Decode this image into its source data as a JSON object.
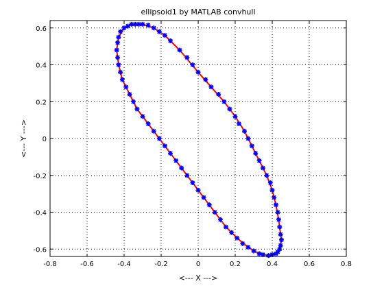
{
  "chart_data": {
    "type": "scatter",
    "title": "ellipsoid1 by MATLAB convhull",
    "xlabel": "<--- X --->",
    "ylabel": "<--- Y --->",
    "xlim": [
      -0.8,
      0.8
    ],
    "ylim": [
      -0.64,
      0.64
    ],
    "xticks": [
      -0.8,
      -0.6,
      -0.4,
      -0.2,
      0,
      0.2,
      0.4,
      0.6,
      0.8
    ],
    "xtick_labels": [
      "-0.8",
      "-0.6",
      "-0.4",
      "-0.2",
      "0",
      "0.2",
      "0.4",
      "0.6",
      "0.8"
    ],
    "yticks": [
      -0.6,
      -0.4,
      -0.2,
      0,
      0.2,
      0.4,
      0.6
    ],
    "ytick_labels": [
      "-0.6",
      "-0.4",
      "-0.2",
      "0",
      "0.2",
      "0.4",
      "0.6"
    ],
    "grid": true,
    "grid_style": "dotted",
    "series": [
      {
        "kind": "points",
        "color": "#0000ff",
        "marker": "star",
        "x": [
          -0.3,
          -0.27,
          -0.24,
          -0.21,
          -0.18,
          -0.15,
          -0.1,
          -0.06,
          -0.03,
          0.0,
          0.04,
          0.07,
          0.11,
          0.14,
          0.17,
          0.2,
          0.22,
          0.25,
          0.27,
          0.29,
          0.31,
          0.33,
          0.35,
          0.37,
          0.39,
          0.4,
          0.41,
          0.42,
          0.43,
          0.435,
          0.44,
          0.445,
          0.45,
          0.445,
          0.44,
          0.43,
          0.42,
          0.4,
          0.38,
          0.35,
          0.33,
          0.3,
          0.27,
          0.24,
          0.21,
          0.18,
          0.15,
          0.12,
          0.09,
          0.06,
          0.03,
          0.0,
          -0.03,
          -0.06,
          -0.09,
          -0.12,
          -0.15,
          -0.18,
          -0.21,
          -0.24,
          -0.27,
          -0.3,
          -0.33,
          -0.35,
          -0.37,
          -0.39,
          -0.41,
          -0.42,
          -0.43,
          -0.435,
          -0.44,
          -0.435,
          -0.43,
          -0.42,
          -0.4,
          -0.38,
          -0.36,
          -0.34,
          -0.32
        ],
        "y": [
          0.62,
          0.615,
          0.6,
          0.58,
          0.56,
          0.53,
          0.48,
          0.44,
          0.4,
          0.36,
          0.32,
          0.28,
          0.24,
          0.2,
          0.16,
          0.12,
          0.08,
          0.04,
          0.0,
          -0.04,
          -0.08,
          -0.12,
          -0.16,
          -0.2,
          -0.24,
          -0.28,
          -0.32,
          -0.36,
          -0.4,
          -0.44,
          -0.48,
          -0.52,
          -0.55,
          -0.58,
          -0.6,
          -0.615,
          -0.625,
          -0.63,
          -0.635,
          -0.63,
          -0.625,
          -0.61,
          -0.59,
          -0.57,
          -0.54,
          -0.51,
          -0.48,
          -0.44,
          -0.4,
          -0.36,
          -0.32,
          -0.28,
          -0.24,
          -0.2,
          -0.16,
          -0.12,
          -0.08,
          -0.04,
          0.0,
          0.04,
          0.08,
          0.12,
          0.16,
          0.2,
          0.24,
          0.28,
          0.32,
          0.36,
          0.4,
          0.44,
          0.48,
          0.52,
          0.55,
          0.58,
          0.6,
          0.61,
          0.62,
          0.62,
          0.62
        ]
      },
      {
        "kind": "line",
        "color": "#ff0000",
        "closed": true,
        "x": [
          -0.3,
          -0.24,
          -0.18,
          -0.1,
          0.0,
          0.07,
          0.14,
          0.2,
          0.25,
          0.29,
          0.33,
          0.37,
          0.4,
          0.42,
          0.435,
          0.445,
          0.45,
          0.44,
          0.42,
          0.38,
          0.33,
          0.27,
          0.21,
          0.15,
          0.09,
          0.03,
          -0.03,
          -0.09,
          -0.15,
          -0.21,
          -0.27,
          -0.33,
          -0.37,
          -0.41,
          -0.43,
          -0.44,
          -0.43,
          -0.4,
          -0.36,
          -0.32
        ],
        "y": [
          0.62,
          0.6,
          0.56,
          0.48,
          0.36,
          0.28,
          0.2,
          0.12,
          0.04,
          -0.04,
          -0.12,
          -0.2,
          -0.28,
          -0.36,
          -0.44,
          -0.52,
          -0.55,
          -0.6,
          -0.625,
          -0.635,
          -0.625,
          -0.59,
          -0.54,
          -0.48,
          -0.4,
          -0.32,
          -0.24,
          -0.16,
          -0.08,
          0.0,
          0.08,
          0.16,
          0.24,
          0.32,
          0.4,
          0.48,
          0.55,
          0.6,
          0.62,
          0.62
        ]
      }
    ]
  }
}
